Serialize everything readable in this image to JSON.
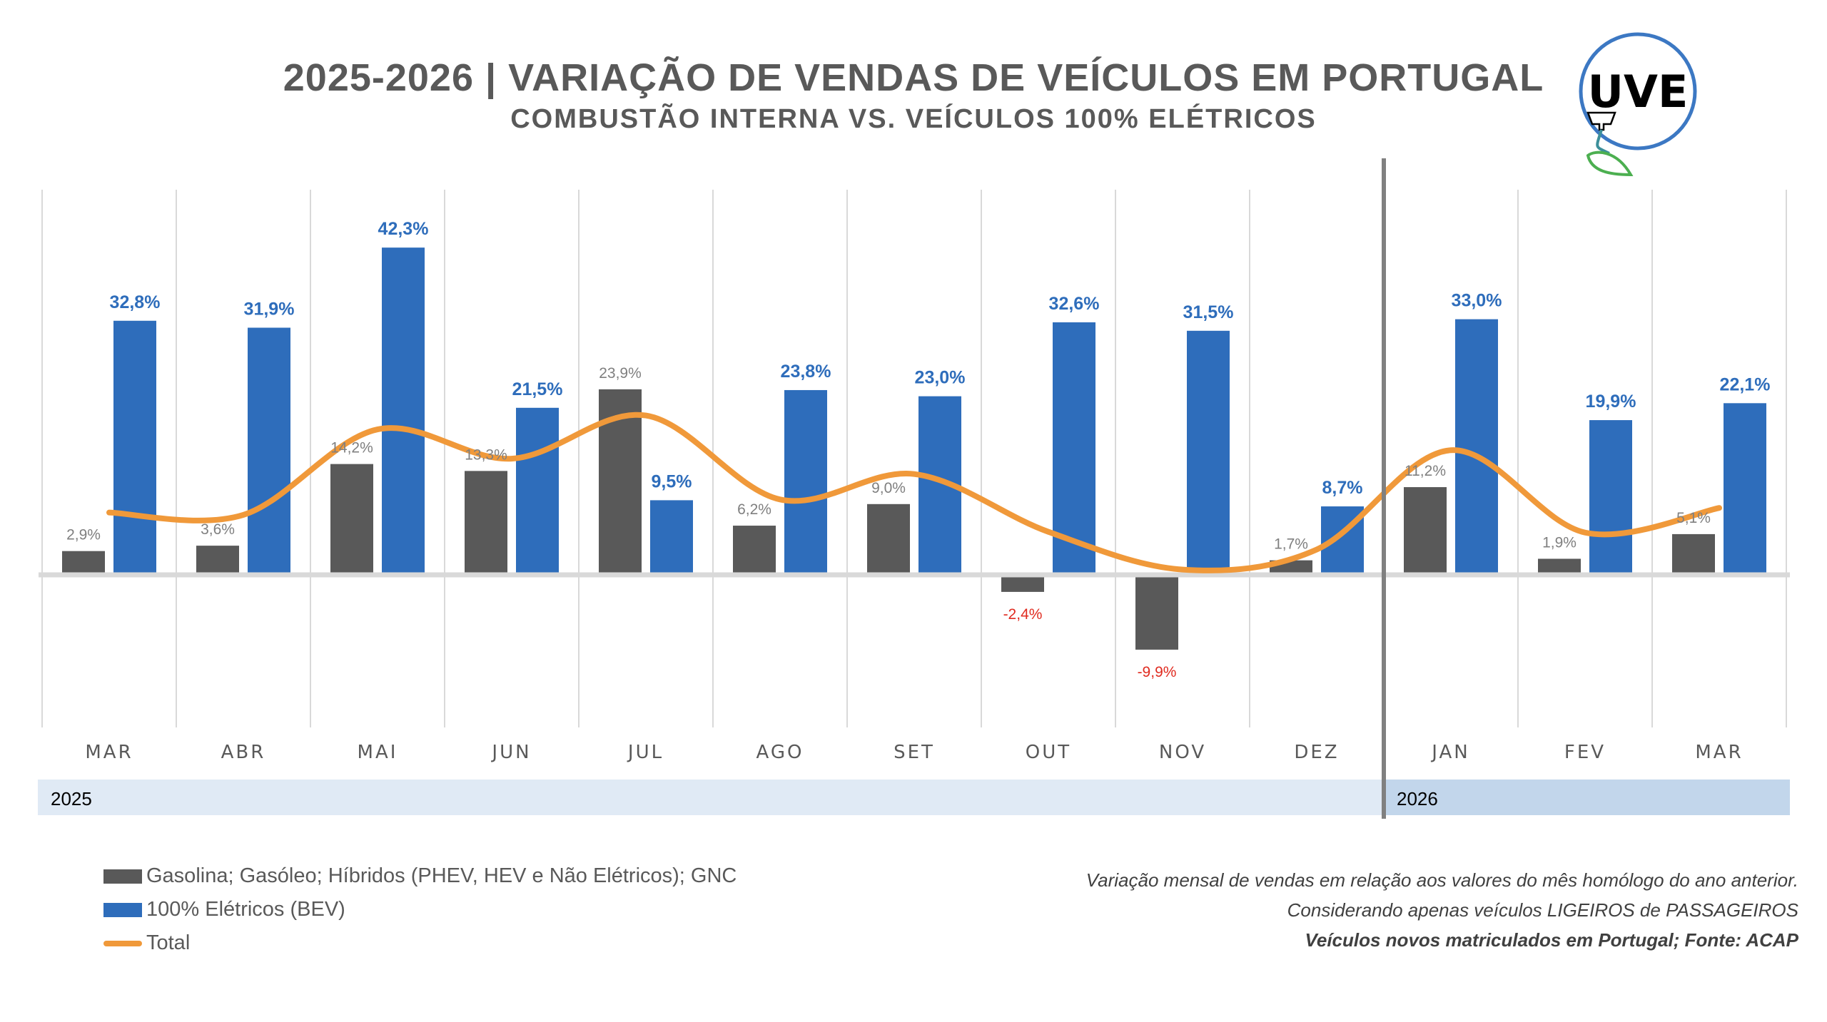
{
  "header": {
    "title": "2025-2026 | VARIAÇÃO DE VENDAS DE VEÍCULOS EM PORTUGAL",
    "subtitle": "COMBUSTÃO INTERNA VS. VEÍCULOS 100% ELÉTRICOS",
    "logo_text": "UVE"
  },
  "colors": {
    "combustion": "#595959",
    "bev": "#2e6dbb",
    "total": "#f0993a",
    "negative_label": "#e02b20",
    "combustion_label": "#7f7f7f",
    "year_band_2025": "#e0eaf5",
    "year_band_2026": "#c2d6eb",
    "divider": "#808080",
    "gridline": "#d9d9d9"
  },
  "chart_data": {
    "type": "bar",
    "title": "2025-2026 | VARIAÇÃO DE VENDAS DE VEÍCULOS EM PORTUGAL",
    "subtitle": "COMBUSTÃO INTERNA VS. VEÍCULOS 100% ELÉTRICOS",
    "categories": [
      "MAR",
      "ABR",
      "MAI",
      "JUN",
      "JUL",
      "AGO",
      "SET",
      "OUT",
      "NOV",
      "DEZ",
      "JAN",
      "FEV",
      "MAR"
    ],
    "year_groups": [
      {
        "label": "2025",
        "start_index": 0,
        "end_index": 9
      },
      {
        "label": "2026",
        "start_index": 10,
        "end_index": 12
      }
    ],
    "series": [
      {
        "name": "Gasolina; Gasóleo; Híbridos (PHEV, HEV e Não Elétricos); GNC",
        "kind": "bar",
        "values": [
          2.9,
          3.6,
          14.2,
          13.3,
          23.9,
          6.2,
          9.0,
          -2.4,
          -9.9,
          1.7,
          11.2,
          1.9,
          5.1
        ],
        "labels": [
          "2,9%",
          "3,6%",
          "14,2%",
          "13,3%",
          "23,9%",
          "6,2%",
          "9,0%",
          "-2,4%",
          "-9,9%",
          "1,7%",
          "11,2%",
          "1,9%",
          "5,1%"
        ]
      },
      {
        "name": "100% Elétricos (BEV)",
        "kind": "bar",
        "values": [
          32.8,
          31.9,
          42.3,
          21.5,
          9.5,
          23.8,
          23.0,
          32.6,
          31.5,
          8.7,
          33.0,
          19.9,
          22.1
        ],
        "labels": [
          "32,8%",
          "31,9%",
          "42,3%",
          "21,5%",
          "9,5%",
          "23,8%",
          "23,0%",
          "32,6%",
          "31,5%",
          "8,7%",
          "33,0%",
          "19,9%",
          "22,1%"
        ]
      },
      {
        "name": "Total",
        "kind": "line",
        "smooth": true,
        "values": [
          7.9,
          7.6,
          18.7,
          14.9,
          20.5,
          9.6,
          12.9,
          5.4,
          0.5,
          3.1,
          16.0,
          5.3,
          8.5
        ]
      }
    ],
    "xlabel": "",
    "ylabel": "",
    "ylim": [
      -12.3,
      48
    ],
    "grid": "vertical",
    "legend": "bottom-left"
  },
  "legend": {
    "items": [
      {
        "label": "Gasolina; Gasóleo; Híbridos (PHEV, HEV e Não Elétricos); GNC"
      },
      {
        "label": "100% Elétricos (BEV)"
      },
      {
        "label": "Total"
      }
    ]
  },
  "notes": {
    "line1": "Variação mensal de vendas em relação aos valores do mês homólogo do ano anterior.",
    "line2": "Considerando apenas veículos LIGEIROS de PASSAGEIROS",
    "line3": "Veículos novos matriculados em Portugal; Fonte: ACAP"
  }
}
